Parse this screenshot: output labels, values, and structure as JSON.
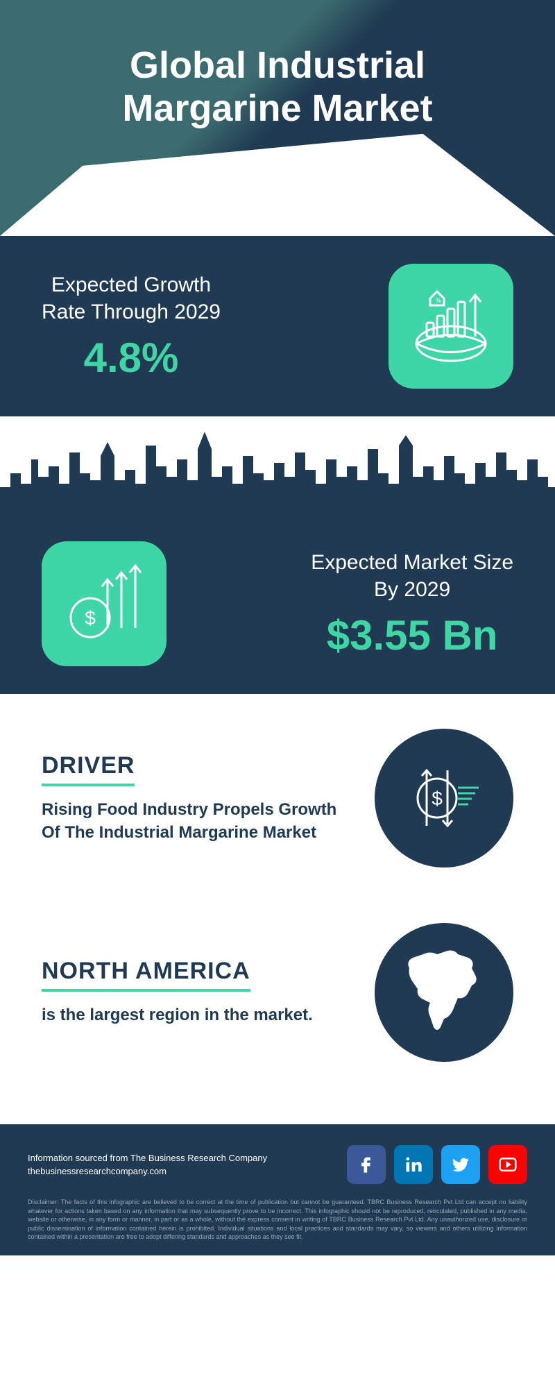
{
  "header": {
    "title": "Global Industrial\nMargarine Market",
    "colors": {
      "left_triangle": "#3b6b6e",
      "right_triangle": "#1f3a52",
      "text": "#ffffff"
    },
    "title_fontsize": 54
  },
  "stat1": {
    "label": "Expected Growth\nRate Through 2029",
    "value": "4.8%",
    "background": "#1f3a52",
    "label_color": "#ffffff",
    "value_color": "#3ed6a4",
    "icon_bg": "#3ed6a4",
    "icon_name": "growth-globe"
  },
  "stat2": {
    "label": "Expected Market Size\nBy 2029",
    "value": "$3.55 Bn",
    "background": "#1f3a52",
    "label_color": "#ffffff",
    "value_color": "#3ed6a4",
    "icon_bg": "#3ed6a4",
    "icon_name": "dollar-arrows"
  },
  "skyline": {
    "fill": "#1f3a52",
    "bg": "#ffffff",
    "height": 140
  },
  "driver": {
    "heading": "DRIVER",
    "body": "Rising Food Industry Propels Growth Of The Industrial Margarine Market",
    "underline_color": "#3ed6a4",
    "heading_color": "#1f3a52",
    "circle_bg": "#1f3a52"
  },
  "region": {
    "heading": "NORTH AMERICA",
    "body": "is the largest region in the market.",
    "underline_color": "#3ed6a4",
    "heading_color": "#1f3a52",
    "circle_bg": "#1f3a52"
  },
  "footer": {
    "source_line1": "Information sourced from The Business Research Company",
    "source_line2": "thebusinessresearchcompany.com",
    "social": [
      {
        "name": "facebook",
        "bg": "#3b5998"
      },
      {
        "name": "linkedin",
        "bg": "#0077b5"
      },
      {
        "name": "twitter",
        "bg": "#1da1f2"
      },
      {
        "name": "youtube",
        "bg": "#ff0000"
      }
    ],
    "disclaimer": "Disclaimer: The facts of this infographic are believed to be correct at the time of publication but cannot be guaranteed. TBRC Business Research Pvt Ltd can accept no liability whatever for actions taken based on any information that may subsequently prove to be incorrect. This infographic should not be reproduced, reirculated, published in any media, website or otherwise, in any form or manner, in part or as a whole, without the express consent in writing of TBRC Business Research Pvt Ltd. Any unauthorized use, disclosure or public dissemination of information contained herein is prohibited. Individual situations and local practices and standards may vary, so viewers and others utilizing information contained within a presentation are free to adopt differing standards and approaches as they see fit."
  }
}
